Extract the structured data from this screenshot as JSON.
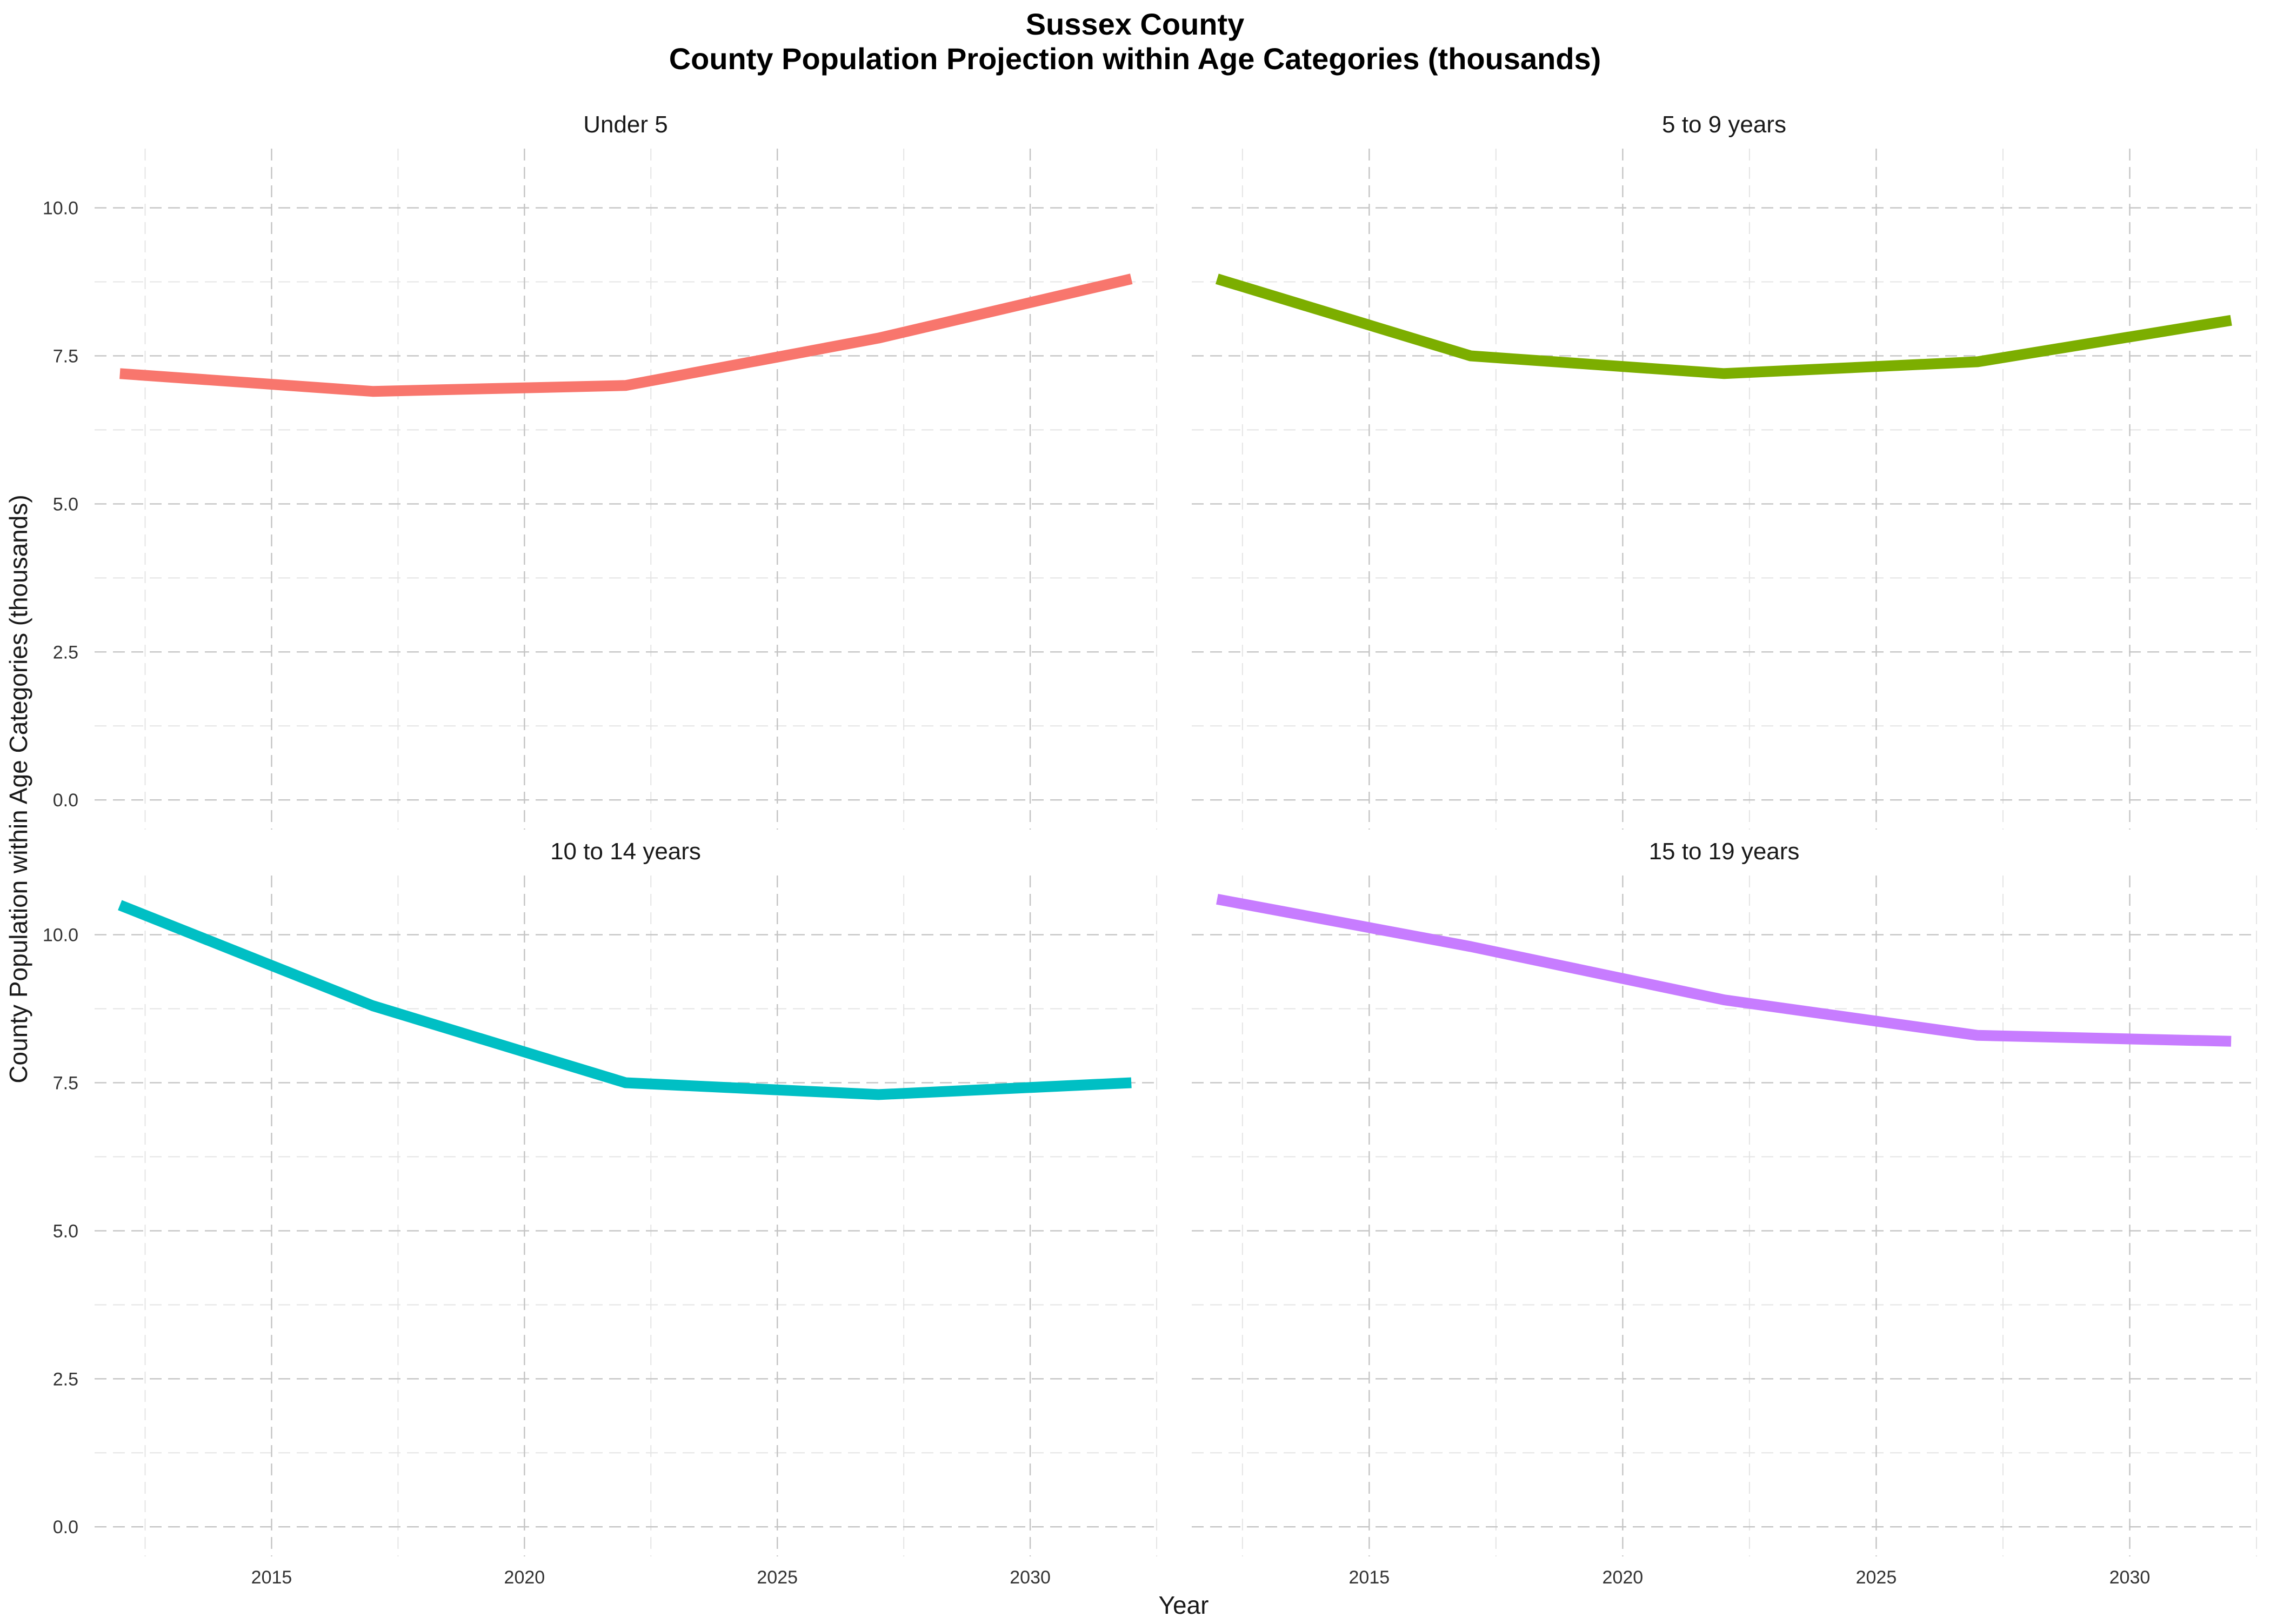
{
  "title": {
    "line1": "Sussex County",
    "line2": "County Population Projection within Age Categories (thousands)"
  },
  "xlabel": "Year",
  "ylabel": "County Population within Age Categories (thousands)",
  "chart_data": {
    "type": "line",
    "title": "Sussex County\nCounty Population Projection within Age Categories (thousands)",
    "xlabel": "Year",
    "ylabel": "County Population within Age Categories (thousands)",
    "xlim": [
      2011.5,
      2032.5
    ],
    "ylim": [
      -0.5,
      11.0
    ],
    "x_ticks": [
      2015,
      2020,
      2025,
      2030
    ],
    "y_ticks": [
      0.0,
      2.5,
      5.0,
      7.5,
      10.0
    ],
    "x_tick_labels": [
      "2015",
      "2020",
      "2025",
      "2030"
    ],
    "y_tick_labels": [
      "0.0",
      "2.5",
      "5.0",
      "7.5",
      "10.0"
    ],
    "grid": true,
    "grid_style": "dashed",
    "legend": "none",
    "facets": [
      {
        "name": "Under 5",
        "color": "#F8766D",
        "x": [
          2012,
          2017,
          2022,
          2027,
          2032
        ],
        "values": [
          7.2,
          6.9,
          7.0,
          7.8,
          8.8
        ]
      },
      {
        "name": "5 to 9 years",
        "color": "#7CAE00",
        "x": [
          2012,
          2017,
          2022,
          2027,
          2032
        ],
        "values": [
          8.8,
          7.5,
          7.2,
          7.4,
          8.1
        ]
      },
      {
        "name": "10 to 14 years",
        "color": "#00BFC4",
        "x": [
          2012,
          2017,
          2022,
          2027,
          2032
        ],
        "values": [
          10.5,
          8.8,
          7.5,
          7.3,
          7.5
        ]
      },
      {
        "name": "15 to 19 years",
        "color": "#C77CFF",
        "x": [
          2012,
          2017,
          2022,
          2027,
          2032
        ],
        "values": [
          10.6,
          9.8,
          8.9,
          8.3,
          8.2
        ]
      }
    ]
  }
}
